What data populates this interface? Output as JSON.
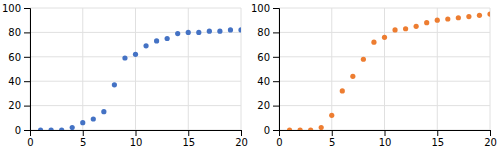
{
  "chart_data": [
    {
      "type": "scatter",
      "x": [
        1,
        2,
        3,
        4,
        5,
        6,
        7,
        8,
        9,
        10,
        11,
        12,
        13,
        14,
        15,
        16,
        17,
        18,
        19,
        20
      ],
      "values": [
        0,
        0,
        0,
        2,
        6,
        9,
        15,
        37,
        59,
        62,
        69,
        73,
        75,
        79,
        80,
        80,
        81,
        81,
        82,
        82
      ],
      "color": "#4472C4",
      "xlim": [
        0,
        20
      ],
      "ylim": [
        0,
        100
      ],
      "xticks": [
        0,
        5,
        10,
        15,
        20
      ],
      "yticks": [
        0,
        20,
        40,
        60,
        80,
        100
      ],
      "grid": true
    },
    {
      "type": "scatter",
      "x": [
        1,
        2,
        3,
        4,
        5,
        6,
        7,
        8,
        9,
        10,
        11,
        12,
        13,
        14,
        15,
        16,
        17,
        18,
        19,
        20
      ],
      "values": [
        0,
        0,
        0,
        2,
        12,
        32,
        44,
        58,
        72,
        76,
        82,
        83,
        85,
        88,
        90,
        91,
        92,
        93,
        94,
        95
      ],
      "color": "#ED7D31",
      "xlim": [
        0,
        20
      ],
      "ylim": [
        0,
        100
      ],
      "xticks": [
        0,
        5,
        10,
        15,
        20
      ],
      "yticks": [
        0,
        20,
        40,
        60,
        80,
        100
      ],
      "grid": true
    }
  ]
}
